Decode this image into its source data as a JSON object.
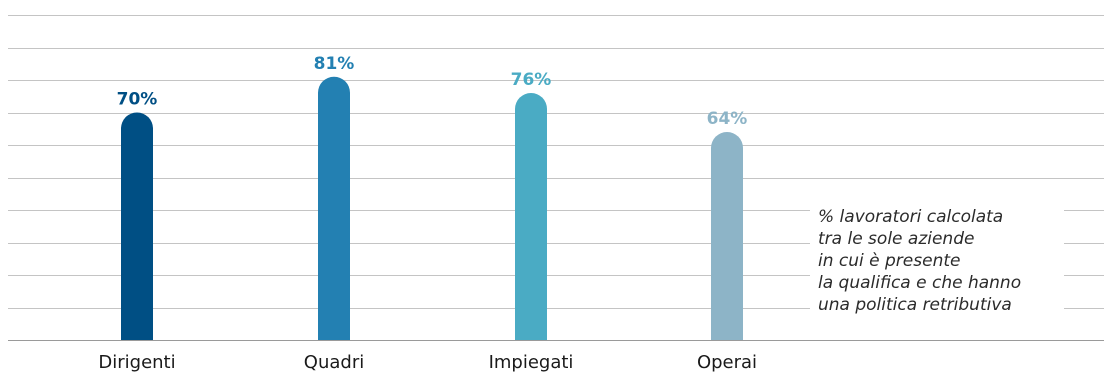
{
  "chart_data": {
    "type": "bar",
    "categories": [
      "Dirigenti",
      "Quadri",
      "Impiegati",
      "Operai"
    ],
    "values": [
      70,
      81,
      76,
      64
    ],
    "value_labels": [
      "70%",
      "81%",
      "76%",
      "64%"
    ],
    "colors": [
      "#004f84",
      "#2380b2",
      "#4aabc4",
      "#8db4c7"
    ],
    "ylim": [
      0,
      100
    ],
    "grid": true,
    "legend": "none",
    "title": "",
    "xlabel": "",
    "ylabel": ""
  },
  "note": {
    "lines": [
      "% lavoratori calcolata",
      "tra le sole aziende",
      "in cui è presente",
      "la qualifica e che hanno",
      "una politica retributiva"
    ]
  }
}
